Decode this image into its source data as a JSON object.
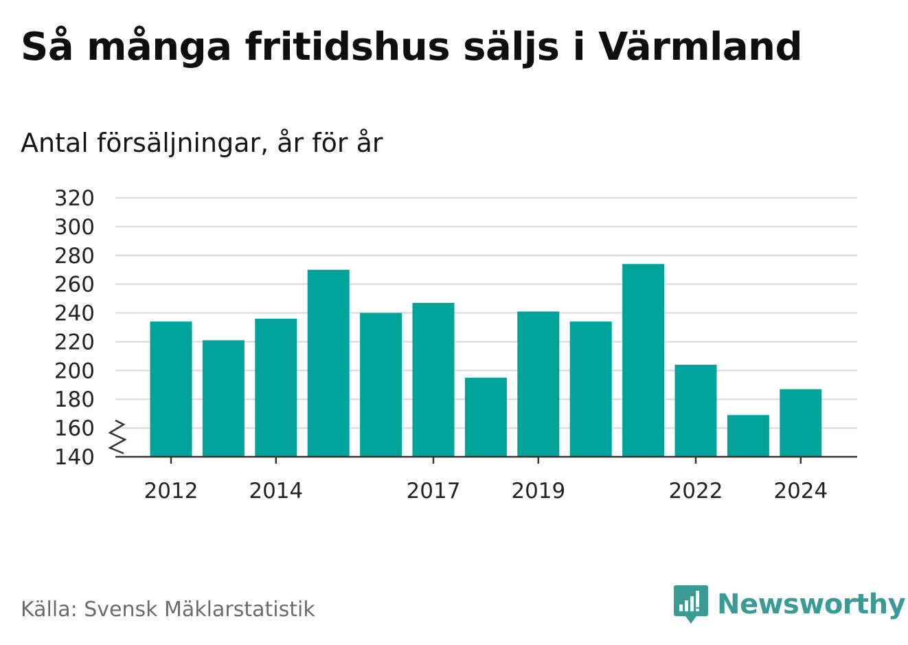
{
  "header": {
    "title": "Så många fritidshus säljs i Värmland",
    "subtitle": "Antal försäljningar, år för år"
  },
  "footer": {
    "source": "Källa: Svensk Mäklarstatistik",
    "brand": "Newsworthy",
    "brand_icon": "bar-chart-speech-bubble-icon"
  },
  "colors": {
    "bar": "#00a39a",
    "grid": "#dddddd",
    "axis": "#333333",
    "brand": "#3a9a94"
  },
  "chart_data": {
    "type": "bar",
    "title": "Så många fritidshus säljs i Värmland",
    "subtitle": "Antal försäljningar, år för år",
    "categories": [
      "2012",
      "2013",
      "2014",
      "2015",
      "2016",
      "2017",
      "2018",
      "2019",
      "2020",
      "2021",
      "2022",
      "2023",
      "2024"
    ],
    "values": [
      234,
      221,
      236,
      270,
      240,
      247,
      195,
      241,
      234,
      274,
      204,
      169,
      187
    ],
    "x_tick_labels": [
      "2012",
      "2014",
      "2017",
      "2019",
      "2022",
      "2024"
    ],
    "y_ticks": [
      140,
      160,
      180,
      200,
      220,
      240,
      260,
      280,
      300,
      320
    ],
    "ylim": [
      140,
      320
    ],
    "y_axis_break": true,
    "grid": true,
    "legend": "none",
    "xlabel": "",
    "ylabel": ""
  }
}
